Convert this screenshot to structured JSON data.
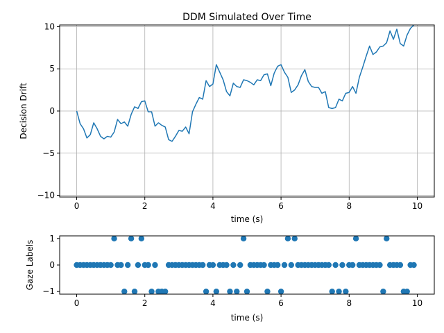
{
  "figure": {
    "background": "#ffffff",
    "line_color": "#1f77b4",
    "grid_color": "#b0b0b0"
  },
  "chart_data": [
    {
      "type": "line",
      "title": "DDM Simulated Over Time",
      "xlabel": "time (s)",
      "ylabel": "Decision Drift",
      "xlim": [
        -0.5,
        10.5
      ],
      "ylim": [
        -10.2,
        10.2
      ],
      "xticks": [
        0,
        2,
        4,
        6,
        8,
        10
      ],
      "xtick_labels": [
        "0",
        "2",
        "4",
        "6",
        "8",
        "10"
      ],
      "yticks": [
        -10,
        -5,
        0,
        5,
        10
      ],
      "ytick_labels": [
        "−10",
        "−5",
        "0",
        "5",
        "10"
      ],
      "grid": true,
      "series": [
        {
          "name": "decision drift",
          "x": [
            0.0,
            0.1,
            0.2,
            0.3,
            0.4,
            0.5,
            0.6,
            0.7,
            0.8,
            0.9,
            1.0,
            1.1,
            1.2,
            1.3,
            1.4,
            1.5,
            1.6,
            1.7,
            1.8,
            1.9,
            2.0,
            2.1,
            2.2,
            2.3,
            2.4,
            2.5,
            2.6,
            2.7,
            2.8,
            2.9,
            3.0,
            3.1,
            3.2,
            3.3,
            3.4,
            3.5,
            3.6,
            3.7,
            3.8,
            3.9,
            4.0,
            4.1,
            4.2,
            4.3,
            4.4,
            4.5,
            4.6,
            4.7,
            4.8,
            4.9,
            5.0,
            5.1,
            5.2,
            5.3,
            5.4,
            5.5,
            5.6,
            5.7,
            5.8,
            5.9,
            6.0,
            6.1,
            6.2,
            6.3,
            6.4,
            6.5,
            6.6,
            6.7,
            6.8,
            6.9,
            7.0,
            7.1,
            7.2,
            7.3,
            7.4,
            7.5,
            7.6,
            7.7,
            7.8,
            7.9,
            8.0,
            8.1,
            8.2,
            8.3,
            8.4,
            8.5,
            8.6,
            8.7,
            8.8,
            8.9,
            9.0,
            9.1,
            9.2,
            9.3,
            9.4,
            9.5,
            9.6,
            9.7,
            9.8,
            9.9
          ],
          "values": [
            0.0,
            -1.5,
            -2.1,
            -3.2,
            -2.8,
            -1.4,
            -2.1,
            -3.0,
            -3.3,
            -3.0,
            -3.1,
            -2.5,
            -1.0,
            -1.5,
            -1.3,
            -1.8,
            -0.4,
            0.5,
            0.3,
            1.1,
            1.2,
            -0.1,
            -0.1,
            -1.8,
            -1.4,
            -1.7,
            -1.9,
            -3.4,
            -3.6,
            -3.0,
            -2.3,
            -2.4,
            -1.9,
            -2.7,
            -0.1,
            0.8,
            1.6,
            1.4,
            3.6,
            2.9,
            3.2,
            5.5,
            4.6,
            3.7,
            2.3,
            1.8,
            3.3,
            2.9,
            2.8,
            3.7,
            3.6,
            3.4,
            3.1,
            3.7,
            3.6,
            4.3,
            4.4,
            3.0,
            4.5,
            5.3,
            5.5,
            4.6,
            4.0,
            2.2,
            2.5,
            3.1,
            4.2,
            4.9,
            3.5,
            2.9,
            2.8,
            2.8,
            2.1,
            2.3,
            0.4,
            0.3,
            0.4,
            1.4,
            1.2,
            2.1,
            2.2,
            2.9,
            2.1,
            4.0,
            5.2,
            6.5,
            7.7,
            6.7,
            7.0,
            7.6,
            7.7,
            8.1,
            9.5,
            8.5,
            9.7,
            8.0,
            7.7,
            9.0,
            9.8,
            10.2
          ]
        }
      ]
    },
    {
      "type": "scatter",
      "title": "",
      "xlabel": "time (s)",
      "ylabel": "Gaze Labels",
      "xlim": [
        -0.5,
        10.5
      ],
      "ylim": [
        -1.1,
        1.1
      ],
      "xticks": [
        0,
        2,
        4,
        6,
        8,
        10
      ],
      "xtick_labels": [
        "0",
        "2",
        "4",
        "6",
        "8",
        "10"
      ],
      "yticks": [
        -1,
        0,
        1
      ],
      "ytick_labels": [
        "−1",
        "0",
        "1"
      ],
      "grid": false,
      "series": [
        {
          "name": "gaze labels",
          "x": [
            0.0,
            0.1,
            0.2,
            0.3,
            0.4,
            0.5,
            0.6,
            0.7,
            0.8,
            0.9,
            1.0,
            1.1,
            1.2,
            1.3,
            1.4,
            1.5,
            1.6,
            1.7,
            1.8,
            1.9,
            2.0,
            2.1,
            2.2,
            2.3,
            2.4,
            2.5,
            2.6,
            2.7,
            2.8,
            2.9,
            3.0,
            3.1,
            3.2,
            3.3,
            3.4,
            3.5,
            3.6,
            3.7,
            3.8,
            3.9,
            4.0,
            4.1,
            4.2,
            4.3,
            4.4,
            4.5,
            4.6,
            4.7,
            4.8,
            4.9,
            5.0,
            5.1,
            5.2,
            5.3,
            5.4,
            5.5,
            5.6,
            5.7,
            5.8,
            5.9,
            6.0,
            6.1,
            6.2,
            6.3,
            6.4,
            6.5,
            6.6,
            6.7,
            6.8,
            6.9,
            7.0,
            7.1,
            7.2,
            7.3,
            7.4,
            7.5,
            7.6,
            7.7,
            7.8,
            7.9,
            8.0,
            8.1,
            8.2,
            8.3,
            8.4,
            8.5,
            8.6,
            8.7,
            8.8,
            8.9,
            9.0,
            9.1,
            9.2,
            9.3,
            9.4,
            9.5,
            9.6,
            9.7,
            9.8,
            9.9
          ],
          "values": [
            0,
            0,
            0,
            0,
            0,
            0,
            0,
            0,
            0,
            0,
            0,
            1,
            0,
            0,
            -1,
            0,
            1,
            -1,
            0,
            1,
            0,
            0,
            -1,
            0,
            -1,
            -1,
            -1,
            0,
            0,
            0,
            0,
            0,
            0,
            0,
            0,
            0,
            0,
            0,
            -1,
            0,
            0,
            -1,
            0,
            0,
            0,
            -1,
            0,
            -1,
            0,
            1,
            -1,
            0,
            0,
            0,
            0,
            0,
            -1,
            0,
            0,
            0,
            -1,
            0,
            1,
            0,
            1,
            0,
            0,
            0,
            0,
            0,
            0,
            0,
            0,
            0,
            0,
            -1,
            0,
            -1,
            0,
            -1,
            0,
            0,
            1,
            0,
            0,
            0,
            0,
            0,
            0,
            0,
            -1,
            1,
            0,
            0,
            0,
            0,
            -1,
            -1,
            0,
            0
          ]
        }
      ]
    }
  ]
}
